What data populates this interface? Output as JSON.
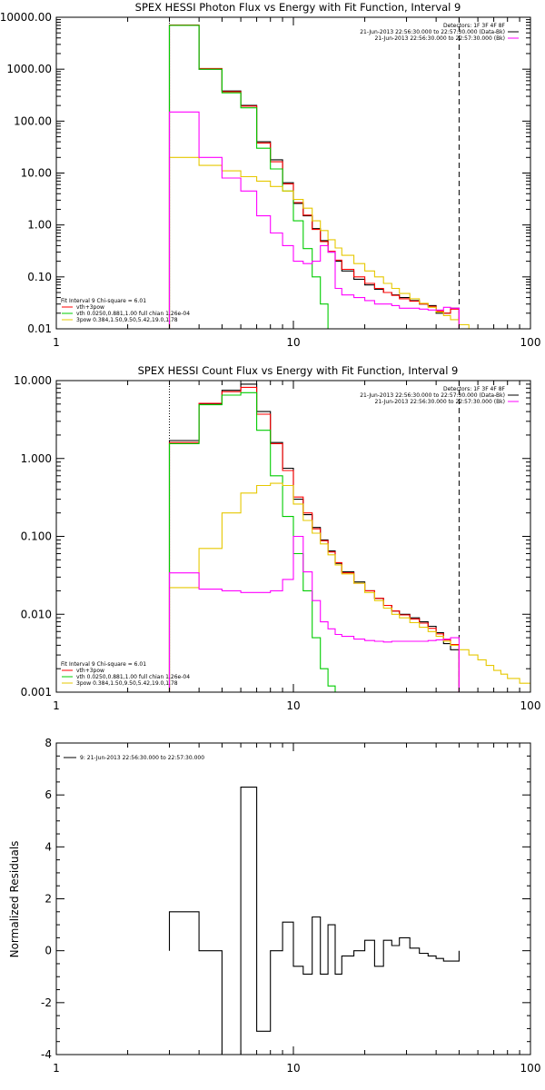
{
  "chart_data": [
    {
      "type": "line",
      "title": "SPEX HESSI Photon Flux vs Energy with Fit Function, Interval 9",
      "xscale": "log",
      "yscale": "log",
      "xlim": [
        1,
        100
      ],
      "ylim": [
        0.01,
        10000
      ],
      "yticks": [
        "0.01",
        "0.10",
        "1.00",
        "10.00",
        "100.00",
        "1000.00",
        "10000.00"
      ],
      "xticks": [
        "1",
        "10",
        "100"
      ],
      "bin_edges": [
        3,
        4,
        5,
        6,
        7,
        8,
        9,
        10,
        11,
        12,
        13,
        14,
        15,
        16,
        18,
        20,
        22,
        24,
        26,
        28,
        31,
        34,
        37,
        40,
        43,
        46,
        50,
        55,
        60,
        65,
        70,
        75,
        80
      ],
      "vlines": [
        {
          "x": 3,
          "style": "dotted"
        },
        {
          "x": 50,
          "style": "dashed"
        }
      ],
      "legend_top": [
        "Detectors: 1F 3F 4F 8F",
        "21-Jun-2013 22:56:30.000 to 22:57:30.000 (Data-Bk)",
        "21-Jun-2013 22:56:30.000 to 22:57:30.000 (Bk)"
      ],
      "legend_top_colors": [
        "#000000",
        "#000000",
        "#ff00ff"
      ],
      "legend_bottom": [
        "Fit Interval 9   Chi-square = 6.01",
        "vth+3pow",
        "vth 0.0250,0.881,1.00  full chian 1.26e-04",
        "3pow 0.384,1.50,9.50,5.42,19.0,1.78"
      ],
      "legend_bottom_colors": [
        "#000000",
        "#ff0000",
        "#00cc00",
        "#e6c800"
      ],
      "series": [
        {
          "name": "Data-Bk",
          "color": "#000000",
          "values": [
            7000,
            1000,
            380,
            200,
            40,
            18,
            6.5,
            2.6,
            1.5,
            0.85,
            0.5,
            0.3,
            0.2,
            0.13,
            0.09,
            0.07,
            0.058,
            0.05,
            0.045,
            0.04,
            0.035,
            0.03,
            0.028,
            0.02,
            0.02,
            0.025
          ]
        },
        {
          "name": "vth+3pow",
          "color": "#ff0000",
          "values": [
            7100,
            1030,
            370,
            195,
            38,
            16.5,
            6.2,
            2.7,
            1.55,
            0.82,
            0.48,
            0.31,
            0.21,
            0.14,
            0.1,
            0.075,
            0.06,
            0.05,
            0.044,
            0.038,
            0.034,
            0.03,
            0.027,
            0.022,
            0.02,
            0.024
          ]
        },
        {
          "name": "vth",
          "color": "#00cc00",
          "values": [
            7000,
            1000,
            350,
            180,
            30,
            12,
            4.5,
            1.2,
            0.35,
            0.1,
            0.03,
            0.01
          ]
        },
        {
          "name": "3pow",
          "color": "#e6c800",
          "values": [
            20,
            14,
            11,
            8.5,
            7,
            5.5,
            4.5,
            3.1,
            2.1,
            1.2,
            0.78,
            0.52,
            0.36,
            0.26,
            0.18,
            0.13,
            0.1,
            0.075,
            0.06,
            0.048,
            0.038,
            0.031,
            0.026,
            0.021,
            0.018,
            0.015,
            0.012,
            0.01,
            0.009
          ]
        },
        {
          "name": "Bk",
          "color": "#ff00ff",
          "values": [
            150,
            20,
            8,
            4.5,
            1.5,
            0.7,
            0.4,
            0.2,
            0.18,
            0.2,
            0.4,
            0.3,
            0.06,
            0.045,
            0.04,
            0.035,
            0.03,
            0.03,
            0.028,
            0.025,
            0.025,
            0.024,
            0.023,
            0.023,
            0.026,
            0.025
          ]
        }
      ]
    },
    {
      "type": "line",
      "title": "SPEX HESSI Count Flux vs Energy with Fit Function, Interval 9",
      "xscale": "log",
      "yscale": "log",
      "xlim": [
        1,
        100
      ],
      "ylim": [
        0.001,
        10
      ],
      "yticks": [
        "0.001",
        "0.010",
        "0.100",
        "1.000",
        "10.000"
      ],
      "xticks": [
        "1",
        "10",
        "100"
      ],
      "bin_edges": [
        3,
        4,
        5,
        6,
        7,
        8,
        9,
        10,
        11,
        12,
        13,
        14,
        15,
        16,
        18,
        20,
        22,
        24,
        26,
        28,
        31,
        34,
        37,
        40,
        43,
        46,
        50,
        55,
        60,
        65,
        70,
        75,
        80,
        90,
        100
      ],
      "vlines": [
        {
          "x": 3,
          "style": "dotted"
        },
        {
          "x": 50,
          "style": "dashed"
        }
      ],
      "legend_top": [
        "Detectors: 1F 3F 4F 8F",
        "21-Jun-2013 22:56:30.000 to 22:57:30.000 (Data-Bk)",
        "21-Jun-2013 22:56:30.000 to 22:57:30.000 (Bk)"
      ],
      "legend_top_colors": [
        "#000000",
        "#000000",
        "#ff00ff"
      ],
      "legend_bottom": [
        "Fit Interval 9   Chi-square = 6.01",
        "vth+3pow",
        "vth 0.0250,0.881,1.00  full chian 1.26e-04",
        "3pow 0.384,1.50,9.50,5.42,19.0,1.78"
      ],
      "legend_bottom_colors": [
        "#000000",
        "#ff0000",
        "#00cc00",
        "#e6c800"
      ],
      "series": [
        {
          "name": "Data-Bk",
          "color": "#000000",
          "values": [
            1.7,
            5.0,
            7.5,
            9.0,
            4.0,
            1.6,
            0.75,
            0.3,
            0.19,
            0.13,
            0.09,
            0.065,
            0.045,
            0.035,
            0.026,
            0.02,
            0.016,
            0.013,
            0.011,
            0.01,
            0.009,
            0.008,
            0.007,
            0.0058,
            0.0042,
            0.0035
          ]
        },
        {
          "name": "vth+3pow",
          "color": "#ff0000",
          "values": [
            1.6,
            5.1,
            7.2,
            8.2,
            3.7,
            1.55,
            0.7,
            0.32,
            0.2,
            0.125,
            0.088,
            0.063,
            0.046,
            0.034,
            0.025,
            0.02,
            0.016,
            0.013,
            0.011,
            0.0098,
            0.0087,
            0.0077,
            0.0066,
            0.0056,
            0.0047,
            0.0041
          ]
        },
        {
          "name": "vth",
          "color": "#00cc00",
          "values": [
            1.55,
            4.9,
            6.5,
            7.0,
            2.3,
            0.6,
            0.18,
            0.06,
            0.02,
            0.005,
            0.002,
            0.0012,
            0.001
          ]
        },
        {
          "name": "3pow",
          "color": "#e6c800",
          "values": [
            0.022,
            0.07,
            0.2,
            0.36,
            0.45,
            0.48,
            0.45,
            0.26,
            0.16,
            0.11,
            0.08,
            0.058,
            0.043,
            0.033,
            0.025,
            0.019,
            0.015,
            0.012,
            0.01,
            0.009,
            0.0078,
            0.0068,
            0.006,
            0.0052,
            0.0045,
            0.004,
            0.0035,
            0.003,
            0.0026,
            0.0022,
            0.0019,
            0.0017,
            0.0015,
            0.0013
          ]
        },
        {
          "name": "Bk",
          "color": "#ff00ff",
          "values": [
            0.034,
            0.021,
            0.02,
            0.019,
            0.019,
            0.02,
            0.028,
            0.1,
            0.035,
            0.015,
            0.008,
            0.0065,
            0.0055,
            0.0052,
            0.0048,
            0.0046,
            0.0045,
            0.0044,
            0.0045,
            0.0045,
            0.0045,
            0.0045,
            0.0046,
            0.0047,
            0.0048,
            0.005
          ]
        }
      ]
    },
    {
      "type": "line",
      "title": "",
      "xscale": "log",
      "xlim": [
        1,
        100
      ],
      "ylim": [
        -4,
        8
      ],
      "ylabel": "Normalized Residuals",
      "yticks": [
        "-4",
        "-2",
        "0",
        "2",
        "4",
        "6",
        "8"
      ],
      "xticks": [
        "1",
        "10",
        "100"
      ],
      "bin_edges": [
        3,
        4,
        5,
        6,
        7,
        8,
        9,
        10,
        11,
        12,
        13,
        14,
        15,
        16,
        18,
        20,
        22,
        24,
        26,
        28,
        31,
        34,
        37,
        40,
        43,
        46,
        50
      ],
      "legend": [
        "9: 21-Jun-2013 22:56:30.000 to 22:57:30.000"
      ],
      "series": [
        {
          "name": "9: 21-Jun-2013 22:56:30.000 to 22:57:30.000",
          "color": "#000000",
          "values": [
            1.5,
            0.0,
            -4.2,
            6.3,
            -3.1,
            0.0,
            1.1,
            -0.6,
            -0.9,
            1.3,
            -0.9,
            1.0,
            -0.9,
            -0.2,
            0.0,
            0.4,
            -0.6,
            0.4,
            0.2,
            0.5,
            0.1,
            -0.1,
            -0.2,
            -0.3,
            -0.4,
            -0.4
          ]
        }
      ]
    }
  ]
}
